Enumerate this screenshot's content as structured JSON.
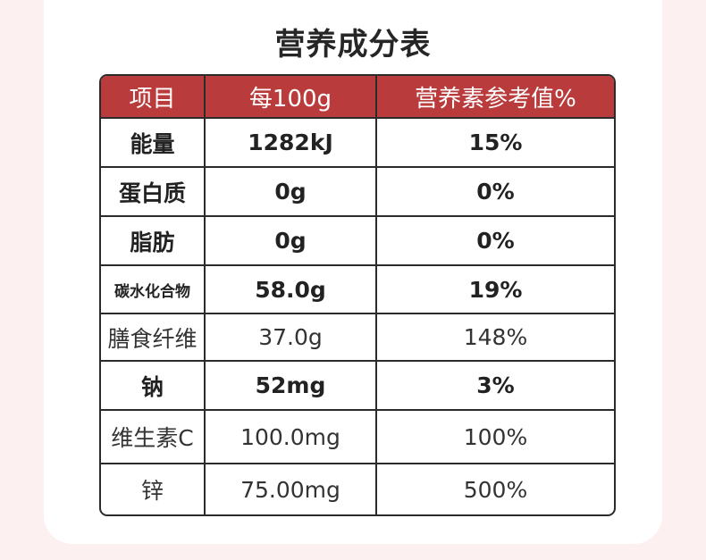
{
  "title": "营养成分表",
  "colors": {
    "header": "#b93b3c",
    "background": "#fdf0f0",
    "card": "#ffffff"
  },
  "headers": [
    "项目",
    "每100g",
    "营养素参考值%"
  ],
  "rows": [
    {
      "item": "能量",
      "per100g": "1282kJ",
      "nrv": "15%",
      "bold": true
    },
    {
      "item": "蛋白质",
      "per100g": "0g",
      "nrv": "0%",
      "bold": true
    },
    {
      "item": "脂肪",
      "per100g": "0g",
      "nrv": "0%",
      "bold": true
    },
    {
      "item": "碳水化合物",
      "per100g": "58.0g",
      "nrv": "19%",
      "bold": true
    },
    {
      "item": "膳食纤维",
      "per100g": "37.0g",
      "nrv": "148%",
      "bold": false
    },
    {
      "item": "钠",
      "per100g": "52mg",
      "nrv": "3%",
      "bold": true
    },
    {
      "item": "维生素C",
      "per100g": "100.0mg",
      "nrv": "100%",
      "bold": false
    },
    {
      "item": "锌",
      "per100g": "75.00mg",
      "nrv": "500%",
      "bold": false
    }
  ]
}
